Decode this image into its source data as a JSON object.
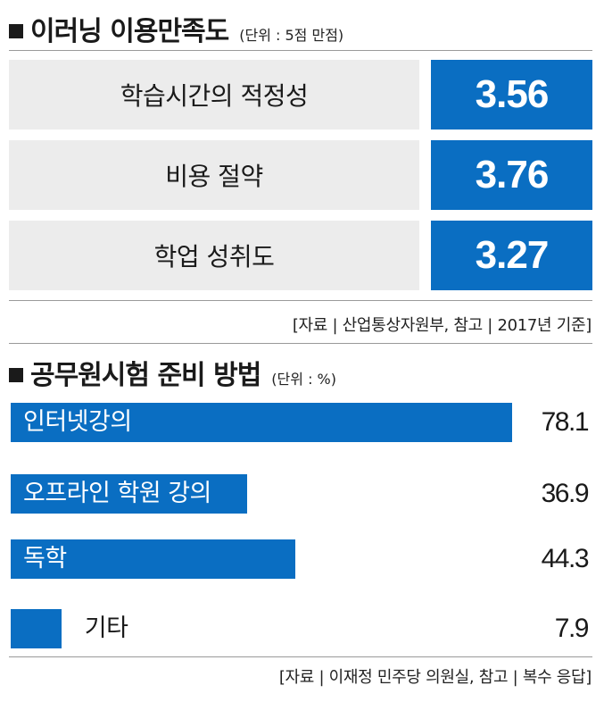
{
  "chart_data": [
    {
      "type": "table",
      "title": "이러닝 이용만족도",
      "unit": "(단위 : 5점 만점)",
      "categories": [
        "학습시간의 적정성",
        "비용 절약",
        "학업 성취도"
      ],
      "values": [
        3.56,
        3.76,
        3.27
      ],
      "value_labels": [
        "3.56",
        "3.76",
        "3.27"
      ],
      "source": "[자료 | 산업통상자원부, 참고 |   2017년 기준]"
    },
    {
      "type": "bar",
      "orientation": "horizontal",
      "title": "공무원시험 준비 방법",
      "unit": "(단위 : %)",
      "categories": [
        "인터넷강의",
        "오프라인 학원 강의",
        "독학",
        "기타"
      ],
      "values": [
        78.1,
        36.9,
        44.3,
        7.9
      ],
      "value_labels": [
        "78.1",
        "36.9",
        "44.3",
        "7.9"
      ],
      "xlim": [
        0,
        100
      ],
      "source": "[자료 | 이재정 민주당 의원실, 참고 | 복수 응답]"
    }
  ],
  "colors": {
    "accent": "#0a6ec2",
    "panel": "#ececec",
    "text": "#1a1a1a"
  }
}
